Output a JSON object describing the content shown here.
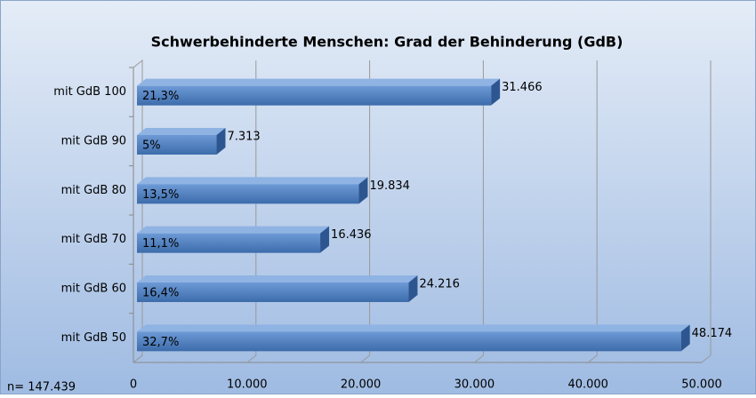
{
  "chart_data": {
    "type": "bar",
    "orientation": "horizontal",
    "title": "Schwerbehinderte Menschen: Grad der Behinderung (GdB)",
    "categories": [
      "mit GdB 100",
      "mit GdB 90",
      "mit GdB 80",
      "mit GdB 70",
      "mit GdB 60",
      "mit GdB 50"
    ],
    "values": [
      31466,
      7313,
      19834,
      16436,
      24216,
      48174
    ],
    "value_labels": [
      "31.466",
      "7.313",
      "19.834",
      "16.436",
      "24.216",
      "48.174"
    ],
    "percent_labels": [
      "21,3%",
      "5%",
      "13,5%",
      "11,1%",
      "16,4%",
      "32,7%"
    ],
    "color": "#4a7ebf",
    "xlim": [
      0,
      50000
    ],
    "xticks": [
      0,
      {
        "value": 10000,
        "label": "10.000"
      },
      {
        "value": 20000,
        "label": "20.000"
      },
      {
        "value": 30000,
        "label": "30.000"
      },
      {
        "value": 40000,
        "label": "40.000"
      },
      {
        "value": 50000,
        "label": "50.000"
      }
    ],
    "grid": true,
    "note": "n= 147.439"
  }
}
